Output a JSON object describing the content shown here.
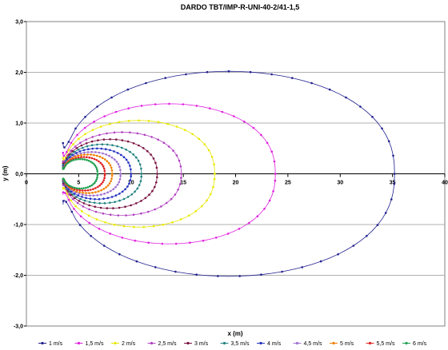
{
  "chart_data": {
    "type": "scatter",
    "title": "DARDO TBT/IMP-R-UNI-40-2/41-1,5",
    "xlabel": "x (m)",
    "ylabel": "y (m)",
    "xlim": [
      0,
      40
    ],
    "ylim": [
      -3,
      3
    ],
    "x_ticks": [
      "0",
      "5",
      "10",
      "15",
      "20",
      "25",
      "30",
      "35",
      "40"
    ],
    "y_ticks": [
      "3,0",
      "2,0",
      "1,0",
      "0,0",
      "-1,0",
      "-2,0",
      "-3,0"
    ],
    "grid": "horizontal",
    "legend": "bottom",
    "x_start": 3.5,
    "series": [
      {
        "name": "1 m/s",
        "color": "#1f1f8f",
        "x_far": 35.2,
        "y_max": 2.02,
        "x_peak": 21.0
      },
      {
        "name": "1,5 m/s",
        "color": "#e020e0",
        "x_far": 23.8,
        "y_max": 1.38,
        "x_peak": 14.5
      },
      {
        "name": "2 m/s",
        "color": "#e8e800",
        "x_far": 18.0,
        "y_max": 1.05,
        "x_peak": 11.5
      },
      {
        "name": "2,5 m/s",
        "color": "#b040c0",
        "x_far": 14.8,
        "y_max": 0.82,
        "x_peak": 9.8
      },
      {
        "name": "3 m/s",
        "color": "#7a1040",
        "x_far": 12.5,
        "y_max": 0.68,
        "x_peak": 8.6
      },
      {
        "name": "3,5 m/s",
        "color": "#208080",
        "x_far": 11.0,
        "y_max": 0.58,
        "x_peak": 7.8
      },
      {
        "name": "4 m/s",
        "color": "#2030c0",
        "x_far": 10.0,
        "y_max": 0.5,
        "x_peak": 7.3
      },
      {
        "name": "4,5 m/s",
        "color": "#a070d0",
        "x_far": 9.0,
        "y_max": 0.43,
        "x_peak": 6.8
      },
      {
        "name": "5 m/s",
        "color": "#f08000",
        "x_far": 8.2,
        "y_max": 0.38,
        "x_peak": 6.3
      },
      {
        "name": "5,5 m/s",
        "color": "#e02020",
        "x_far": 7.5,
        "y_max": 0.33,
        "x_peak": 5.9
      },
      {
        "name": "6 m/s",
        "color": "#20a050",
        "x_far": 6.8,
        "y_max": 0.29,
        "x_peak": 5.5
      }
    ]
  }
}
